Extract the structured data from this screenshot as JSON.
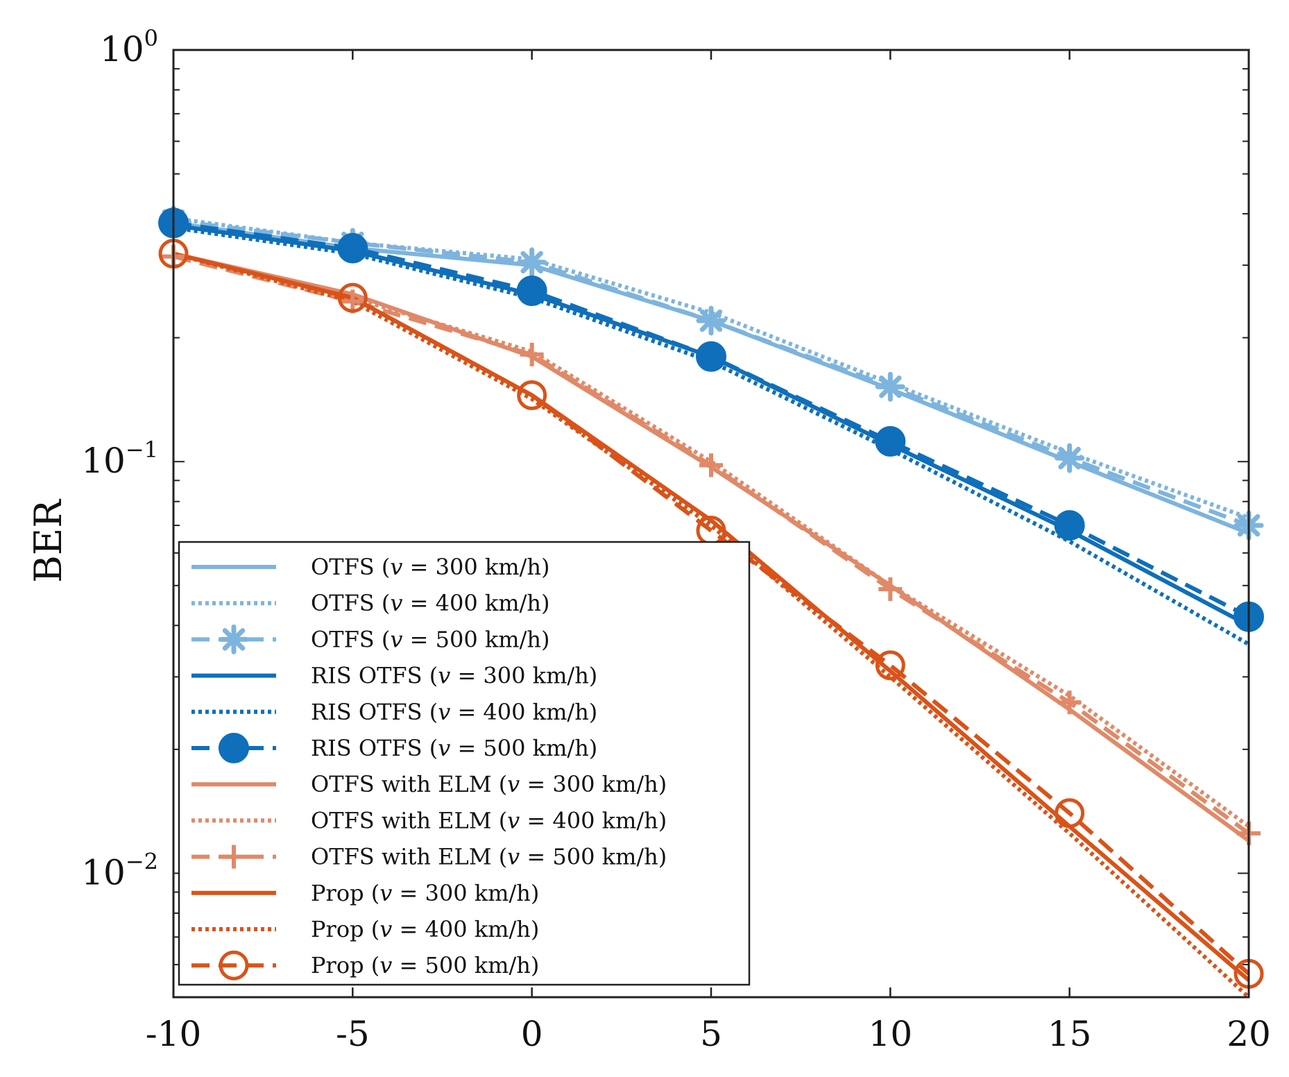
{
  "chart_data": {
    "type": "line",
    "title": "",
    "xlabel": "",
    "ylabel": "BER",
    "y_scale": "log",
    "xlim": [
      -10,
      20
    ],
    "ylim": [
      0.005,
      1
    ],
    "x": [
      -10,
      -5,
      0,
      5,
      10,
      15,
      20
    ],
    "x_ticks": [
      "-10",
      "-5",
      "0",
      "5",
      "10",
      "15",
      "20"
    ],
    "y_ticks": [
      {
        "value": 1,
        "base": "10",
        "exp": "0"
      },
      {
        "value": 0.1,
        "base": "10",
        "exp": "−1"
      },
      {
        "value": 0.01,
        "base": "10",
        "exp": "−2"
      }
    ],
    "legend_position": "bottom-left",
    "series": [
      {
        "name": "OTFS (v = 300 km/h)",
        "legend_prefix": "OTFS (",
        "legend_suffix": " = 300 km/h)",
        "color": "#7db4dd",
        "dash": "solid",
        "marker": "none",
        "values": [
          0.38,
          0.33,
          0.3,
          0.22,
          0.15,
          0.1,
          0.067
        ]
      },
      {
        "name": "OTFS (v = 400 km/h)",
        "legend_prefix": "OTFS (",
        "legend_suffix": " = 400 km/h)",
        "color": "#7db4dd",
        "dash": "dot",
        "marker": "none",
        "values": [
          0.39,
          0.34,
          0.31,
          0.23,
          0.155,
          0.105,
          0.073
        ]
      },
      {
        "name": "OTFS (v = 500 km/h)",
        "legend_prefix": "OTFS (",
        "legend_suffix": " = 500 km/h)",
        "color": "#7db4dd",
        "dash": "dash",
        "marker": "asterisk",
        "values": [
          0.385,
          0.34,
          0.305,
          0.22,
          0.152,
          0.102,
          0.07
        ]
      },
      {
        "name": "RIS OTFS (v = 300 km/h)",
        "legend_prefix": "RIS OTFS (",
        "legend_suffix": " = 300 km/h)",
        "color": "#0f6fba",
        "dash": "solid",
        "marker": "none",
        "values": [
          0.375,
          0.325,
          0.255,
          0.18,
          0.11,
          0.068,
          0.04
        ]
      },
      {
        "name": "RIS OTFS (v = 400 km/h)",
        "legend_prefix": "RIS OTFS (",
        "legend_suffix": " = 400 km/h)",
        "color": "#0f6fba",
        "dash": "dot",
        "marker": "none",
        "values": [
          0.37,
          0.32,
          0.25,
          0.175,
          0.107,
          0.064,
          0.036
        ]
      },
      {
        "name": "RIS OTFS (v = 500 km/h)",
        "legend_prefix": "RIS OTFS (",
        "legend_suffix": " = 500 km/h)",
        "color": "#0f6fba",
        "dash": "dash",
        "marker": "filled-circle",
        "values": [
          0.38,
          0.33,
          0.26,
          0.18,
          0.112,
          0.07,
          0.042
        ]
      },
      {
        "name": "OTFS with ELM (v = 300 km/h)",
        "legend_prefix": "OTFS with ELM (",
        "legend_suffix": " = 300 km/h)",
        "color": "#e08968",
        "dash": "solid",
        "marker": "none",
        "values": [
          0.32,
          0.255,
          0.18,
          0.097,
          0.05,
          0.025,
          0.012
        ]
      },
      {
        "name": "OTFS with ELM (v = 400 km/h)",
        "legend_prefix": "OTFS with ELM (",
        "legend_suffix": " = 400 km/h)",
        "color": "#e08968",
        "dash": "dot",
        "marker": "none",
        "values": [
          0.32,
          0.25,
          0.185,
          0.1,
          0.05,
          0.027,
          0.013
        ]
      },
      {
        "name": "OTFS with ELM (v = 500 km/h)",
        "legend_prefix": "OTFS with ELM (",
        "legend_suffix": " = 500 km/h)",
        "color": "#e08968",
        "dash": "dash",
        "marker": "plus",
        "values": [
          0.315,
          0.245,
          0.182,
          0.098,
          0.049,
          0.026,
          0.0125
        ]
      },
      {
        "name": "Prop (v = 300 km/h)",
        "legend_prefix": "Prop (",
        "legend_suffix": " = 300 km/h)",
        "color": "#d95319",
        "dash": "solid",
        "marker": "none",
        "values": [
          0.32,
          0.25,
          0.145,
          0.072,
          0.031,
          0.013,
          0.0055
        ]
      },
      {
        "name": "Prop (v = 400 km/h)",
        "legend_prefix": "Prop (",
        "legend_suffix": " = 400 km/h)",
        "color": "#d95319",
        "dash": "dot",
        "marker": "none",
        "values": [
          0.32,
          0.245,
          0.142,
          0.07,
          0.03,
          0.0125,
          0.005
        ]
      },
      {
        "name": "Prop (v = 500 km/h)",
        "legend_prefix": "Prop (",
        "legend_suffix": " = 500 km/h)",
        "color": "#d95319",
        "dash": "dash",
        "marker": "open-circle",
        "values": [
          0.32,
          0.25,
          0.145,
          0.068,
          0.032,
          0.014,
          0.0057
        ]
      }
    ]
  }
}
